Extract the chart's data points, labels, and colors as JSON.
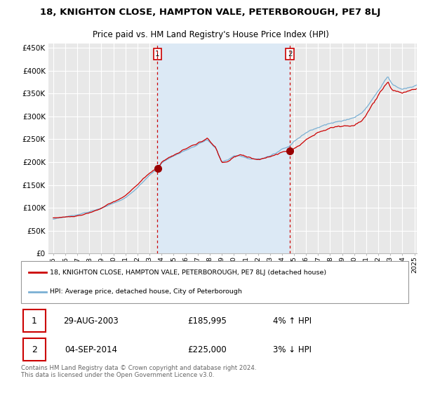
{
  "title": "18, KNIGHTON CLOSE, HAMPTON VALE, PETERBOROUGH, PE7 8LJ",
  "subtitle": "Price paid vs. HM Land Registry's House Price Index (HPI)",
  "red_label": "18, KNIGHTON CLOSE, HAMPTON VALE, PETERBOROUGH, PE7 8LJ (detached house)",
  "blue_label": "HPI: Average price, detached house, City of Peterborough",
  "transactions": [
    {
      "num": 1,
      "date": "29-AUG-2003",
      "price": "£185,995",
      "hpi": "4% ↑ HPI",
      "year": 2003.66
    },
    {
      "num": 2,
      "date": "04-SEP-2014",
      "price": "£225,000",
      "hpi": "3% ↓ HPI",
      "year": 2014.67
    }
  ],
  "footnote": "Contains HM Land Registry data © Crown copyright and database right 2024.\nThis data is licensed under the Open Government Licence v3.0.",
  "ylim": [
    0,
    460000
  ],
  "yticks": [
    0,
    50000,
    100000,
    150000,
    200000,
    250000,
    300000,
    350000,
    400000,
    450000
  ],
  "background_color": "#ffffff",
  "plot_bg_color": "#e8e8e8",
  "grid_color": "#ffffff",
  "red_color": "#cc0000",
  "blue_color": "#7ab0d4",
  "shade_color": "#dce9f5",
  "vline_color": "#cc0000",
  "dot_color": "#990000",
  "xstart": 1995,
  "xend": 2025.2
}
